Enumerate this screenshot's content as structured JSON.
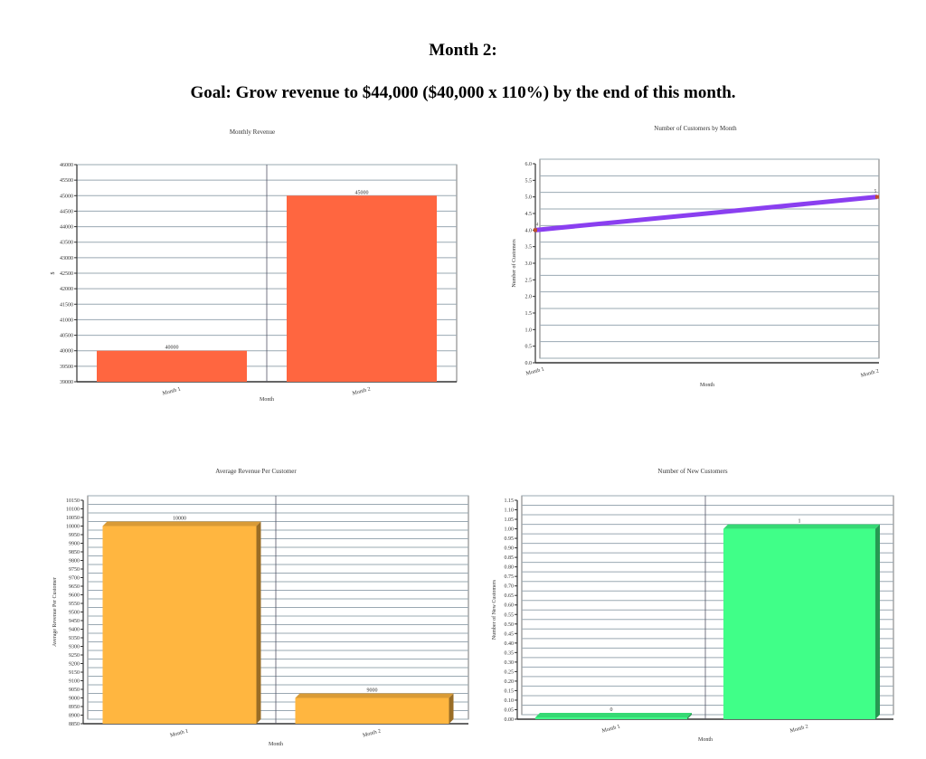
{
  "heading": "Month 2:",
  "goal": "Goal: Grow revenue to $44,000 ($40,000 x 110%) by the end of this month.",
  "chart_data": [
    {
      "type": "bar",
      "title": "Monthly Revenue",
      "xlabel": "Month",
      "ylabel": "$",
      "categories": [
        "Month 1",
        "Month 2"
      ],
      "values": [
        40000,
        45000
      ],
      "data_labels": [
        "40000",
        "45000"
      ],
      "ylim": [
        39000,
        46000
      ],
      "ystep": 500,
      "grid": true,
      "color": "#ff6640",
      "style": "flat"
    },
    {
      "type": "line",
      "title": "Number of Customers by Month",
      "xlabel": "Month",
      "ylabel": "Number of Customers",
      "categories": [
        "Month 1",
        "Month 2"
      ],
      "values": [
        4,
        5
      ],
      "data_labels": [
        "4",
        "5"
      ],
      "ylim": [
        0,
        6
      ],
      "ystep": 0.5,
      "grid": true,
      "color": "#8a3ff0",
      "style": "3d"
    },
    {
      "type": "bar",
      "title": "Average Revenue Per Customer",
      "xlabel": "Month",
      "ylabel": "Average Revenue Per Customer",
      "categories": [
        "Month 1",
        "Month 2"
      ],
      "values": [
        10000,
        9000
      ],
      "data_labels": [
        "10000",
        "9000"
      ],
      "ylim": [
        8850,
        10150
      ],
      "ystep": 50,
      "grid": true,
      "color": "#ffb640",
      "style": "3d"
    },
    {
      "type": "bar",
      "title": "Number of New Customers",
      "xlabel": "Month",
      "ylabel": "Number of New Customers",
      "categories": [
        "Month 1",
        "Month 2"
      ],
      "values": [
        0,
        1
      ],
      "data_labels": [
        "0",
        "1"
      ],
      "ylim": [
        0,
        1.15
      ],
      "ystep": 0.05,
      "grid": true,
      "color": "#40ff88",
      "style": "3d"
    }
  ]
}
